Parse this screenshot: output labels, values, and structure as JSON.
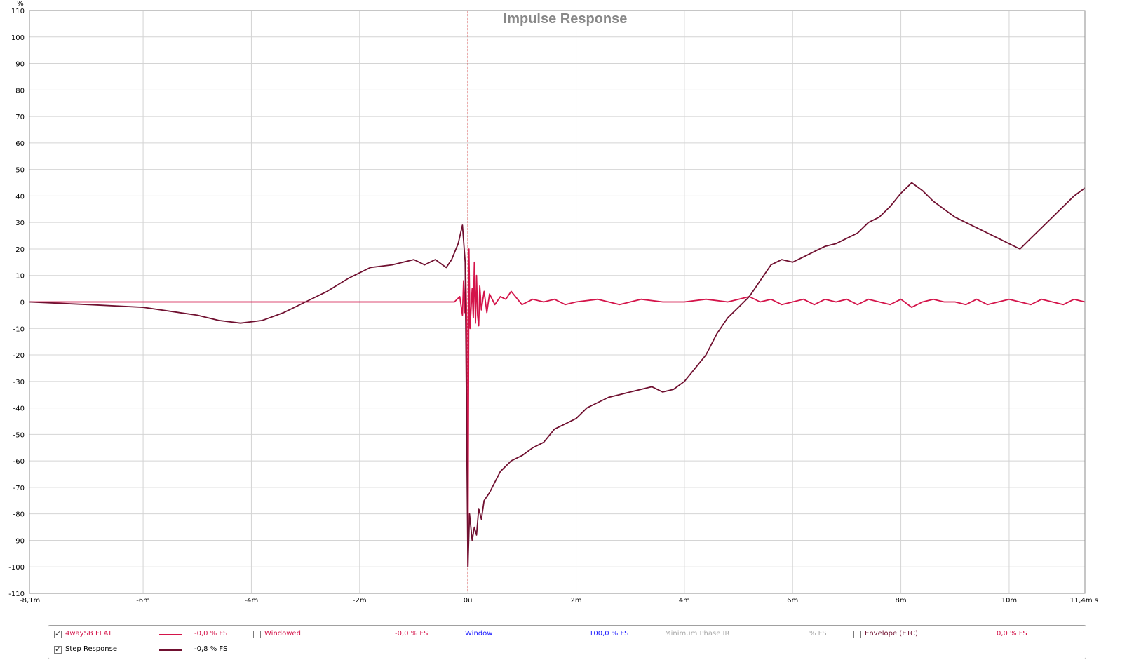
{
  "chart_data": {
    "type": "line",
    "title": "Impulse Response",
    "y_unit": "%",
    "x_unit": "s",
    "xlim": [
      -0.0081,
      0.0114
    ],
    "ylim": [
      -110,
      110
    ],
    "grid": true,
    "x_ticks": [
      {
        "v": -0.0081,
        "label": "-8,1m"
      },
      {
        "v": -0.006,
        "label": "-6m"
      },
      {
        "v": -0.004,
        "label": "-4m"
      },
      {
        "v": -0.002,
        "label": "-2m"
      },
      {
        "v": 0.0,
        "label": "0u"
      },
      {
        "v": 0.002,
        "label": "2m"
      },
      {
        "v": 0.004,
        "label": "4m"
      },
      {
        "v": 0.006,
        "label": "6m"
      },
      {
        "v": 0.008,
        "label": "8m"
      },
      {
        "v": 0.01,
        "label": "10m"
      },
      {
        "v": 0.0114,
        "label": "11,4m s"
      }
    ],
    "y_ticks": [
      110,
      100,
      90,
      80,
      70,
      60,
      50,
      40,
      30,
      20,
      10,
      0,
      -10,
      -20,
      -30,
      -40,
      -50,
      -60,
      -70,
      -80,
      -90,
      -100,
      -110
    ],
    "marker_x": 0.0,
    "series": [
      {
        "name": "4waySB FLAT",
        "color": "#d4144a",
        "x": [
          -0.0081,
          -0.006,
          -0.004,
          -0.002,
          -0.001,
          -0.0004,
          -0.00025,
          -0.00015,
          -0.0001,
          -8e-05,
          -6e-05,
          -4e-05,
          -2e-05,
          0.0,
          2e-05,
          4e-05,
          6e-05,
          8e-05,
          0.0001,
          0.00012,
          0.00014,
          0.00016,
          0.00018,
          0.0002,
          0.00022,
          0.00025,
          0.0003,
          0.00035,
          0.0004,
          0.0005,
          0.0006,
          0.0007,
          0.0008,
          0.001,
          0.0012,
          0.0014,
          0.0016,
          0.0018,
          0.002,
          0.0024,
          0.0028,
          0.003,
          0.0032,
          0.0036,
          0.004,
          0.0044,
          0.0048,
          0.005,
          0.0052,
          0.0054,
          0.0056,
          0.0058,
          0.006,
          0.0062,
          0.0064,
          0.0066,
          0.0068,
          0.007,
          0.0072,
          0.0074,
          0.0076,
          0.0078,
          0.008,
          0.0082,
          0.0084,
          0.0086,
          0.0088,
          0.009,
          0.0092,
          0.0094,
          0.0096,
          0.0098,
          0.01,
          0.0102,
          0.0104,
          0.0106,
          0.0108,
          0.011,
          0.0112,
          0.0114
        ],
        "y": [
          0,
          0,
          0,
          0,
          0,
          0,
          0,
          2,
          -5,
          8,
          -4,
          10,
          -8,
          -100,
          20,
          -10,
          -2,
          5,
          -6,
          15,
          -8,
          10,
          -5,
          -9,
          6,
          -3,
          4,
          -4,
          3,
          -1,
          2,
          1,
          4,
          -1,
          1,
          0,
          1,
          -1,
          0,
          1,
          -1,
          0,
          1,
          0,
          0,
          1,
          0,
          1,
          2,
          0,
          1,
          -1,
          0,
          1,
          -1,
          1,
          0,
          1,
          -1,
          1,
          0,
          -1,
          1,
          -2,
          0,
          1,
          0,
          0,
          -1,
          1,
          -1,
          0,
          1,
          0,
          -1,
          1,
          0,
          -1,
          1,
          0
        ]
      },
      {
        "name": "Step Response",
        "color": "#701030",
        "x": [
          -0.0081,
          -0.007,
          -0.006,
          -0.005,
          -0.0046,
          -0.0042,
          -0.0038,
          -0.0034,
          -0.003,
          -0.0026,
          -0.0022,
          -0.0018,
          -0.0014,
          -0.001,
          -0.0008,
          -0.0006,
          -0.0004,
          -0.0003,
          -0.00018,
          -0.0001,
          -5e-05,
          0.0,
          3e-05,
          8e-05,
          0.00012,
          0.00016,
          0.0002,
          0.00025,
          0.0003,
          0.0004,
          0.0005,
          0.0006,
          0.0008,
          0.001,
          0.0012,
          0.0014,
          0.0016,
          0.0018,
          0.002,
          0.0022,
          0.0024,
          0.0026,
          0.0028,
          0.003,
          0.0032,
          0.0034,
          0.0036,
          0.0038,
          0.004,
          0.0042,
          0.0044,
          0.0046,
          0.0048,
          0.005,
          0.0052,
          0.0054,
          0.0056,
          0.0058,
          0.006,
          0.0062,
          0.0064,
          0.0066,
          0.0068,
          0.007,
          0.0072,
          0.0074,
          0.0076,
          0.0078,
          0.008,
          0.0082,
          0.0084,
          0.0086,
          0.0088,
          0.009,
          0.0092,
          0.0094,
          0.0096,
          0.0098,
          0.01,
          0.0102,
          0.0104,
          0.0106,
          0.0108,
          0.011,
          0.0112,
          0.0114
        ],
        "y": [
          0,
          -1,
          -2,
          -5,
          -7,
          -8,
          -7,
          -4,
          0,
          4,
          9,
          13,
          14,
          16,
          14,
          16,
          13,
          16,
          22,
          29,
          15,
          -100,
          -80,
          -90,
          -85,
          -88,
          -78,
          -82,
          -75,
          -72,
          -68,
          -64,
          -60,
          -58,
          -55,
          -53,
          -48,
          -46,
          -44,
          -40,
          -38,
          -36,
          -35,
          -34,
          -33,
          -32,
          -34,
          -33,
          -30,
          -25,
          -20,
          -12,
          -6,
          -2,
          2,
          8,
          14,
          16,
          15,
          17,
          19,
          21,
          22,
          24,
          26,
          30,
          32,
          36,
          41,
          45,
          42,
          38,
          35,
          32,
          30,
          28,
          26,
          24,
          22,
          20,
          24,
          28,
          32,
          36,
          40,
          43
        ]
      }
    ]
  },
  "legend": {
    "rows": [
      {
        "checked": true,
        "name": "4waySB FLAT",
        "color": "#d4144a",
        "value": "-0,0 % FS"
      },
      {
        "checked": true,
        "name": "Step Response",
        "color": "#701030",
        "value": "-0,8 % FS"
      }
    ],
    "extras": [
      {
        "checked": false,
        "label": "Windowed",
        "label_color": "#d4144a",
        "value": "-0,0 % FS",
        "value_color": "#d4144a"
      },
      {
        "checked": false,
        "label": "Window",
        "label_color": "#1a1aff",
        "value": "100,0 % FS",
        "value_color": "#1a1aff"
      },
      {
        "checked": false,
        "label": "Minimum Phase IR",
        "label_color": "#a8a8a8",
        "value": "% FS",
        "value_color": "#a8a8a8",
        "disabled": true
      },
      {
        "checked": false,
        "label": "Envelope (ETC)",
        "label_color": "#701030",
        "value": "0,0 % FS",
        "value_color": "#d4144a"
      }
    ]
  }
}
